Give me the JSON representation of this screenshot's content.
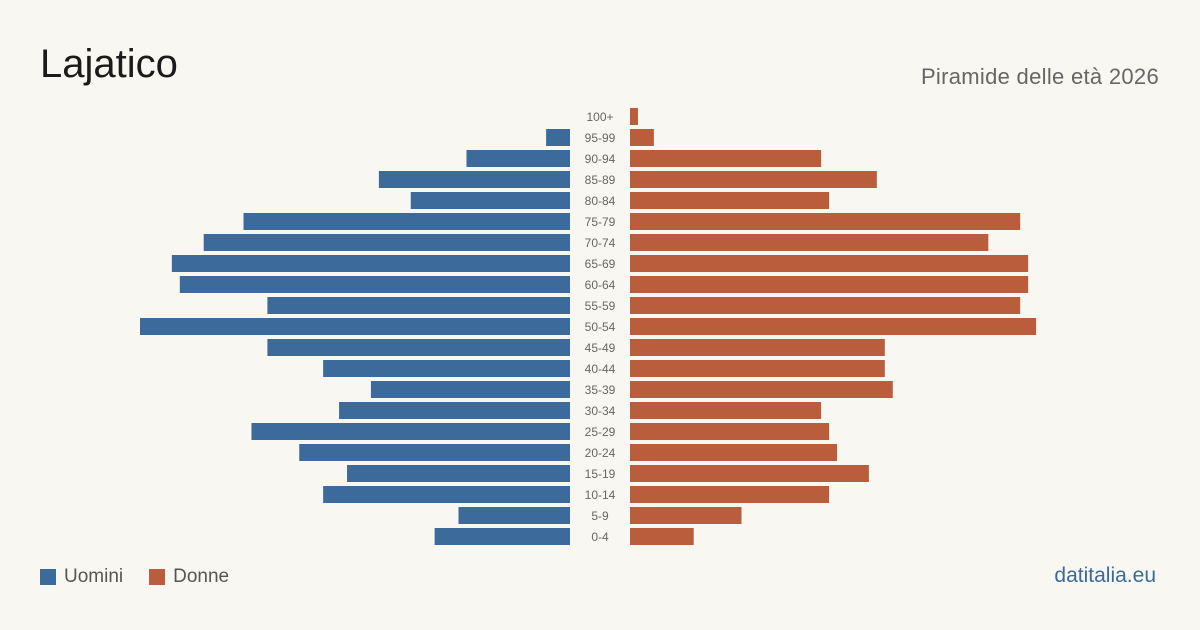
{
  "header": {
    "title": "Lajatico",
    "subtitle": "Piramide delle età 2026"
  },
  "footer": {
    "source": "datitalia.eu"
  },
  "colors": {
    "male": "#3b6a9b",
    "female": "#b95d3d",
    "background": "#f9f7f2"
  },
  "chart_data": {
    "type": "bar",
    "orientation": "horizontal-population-pyramid",
    "categories": [
      "100+",
      "95-99",
      "90-94",
      "85-89",
      "80-84",
      "75-79",
      "70-74",
      "65-69",
      "60-64",
      "55-59",
      "50-54",
      "45-49",
      "40-44",
      "35-39",
      "30-34",
      "25-29",
      "20-24",
      "15-19",
      "10-14",
      "5-9",
      "0-4"
    ],
    "series": [
      {
        "name": "Uomini",
        "values": [
          0,
          3,
          13,
          24,
          20,
          41,
          46,
          50,
          49,
          38,
          54,
          38,
          31,
          25,
          29,
          40,
          34,
          28,
          31,
          14,
          17
        ]
      },
      {
        "name": "Donne",
        "values": [
          1,
          3,
          24,
          31,
          25,
          49,
          45,
          50,
          50,
          49,
          51,
          32,
          32,
          33,
          24,
          25,
          26,
          30,
          25,
          14,
          8
        ]
      }
    ],
    "legend": [
      "Uomini",
      "Donne"
    ],
    "legend_position": "bottom-left",
    "grid": false
  }
}
